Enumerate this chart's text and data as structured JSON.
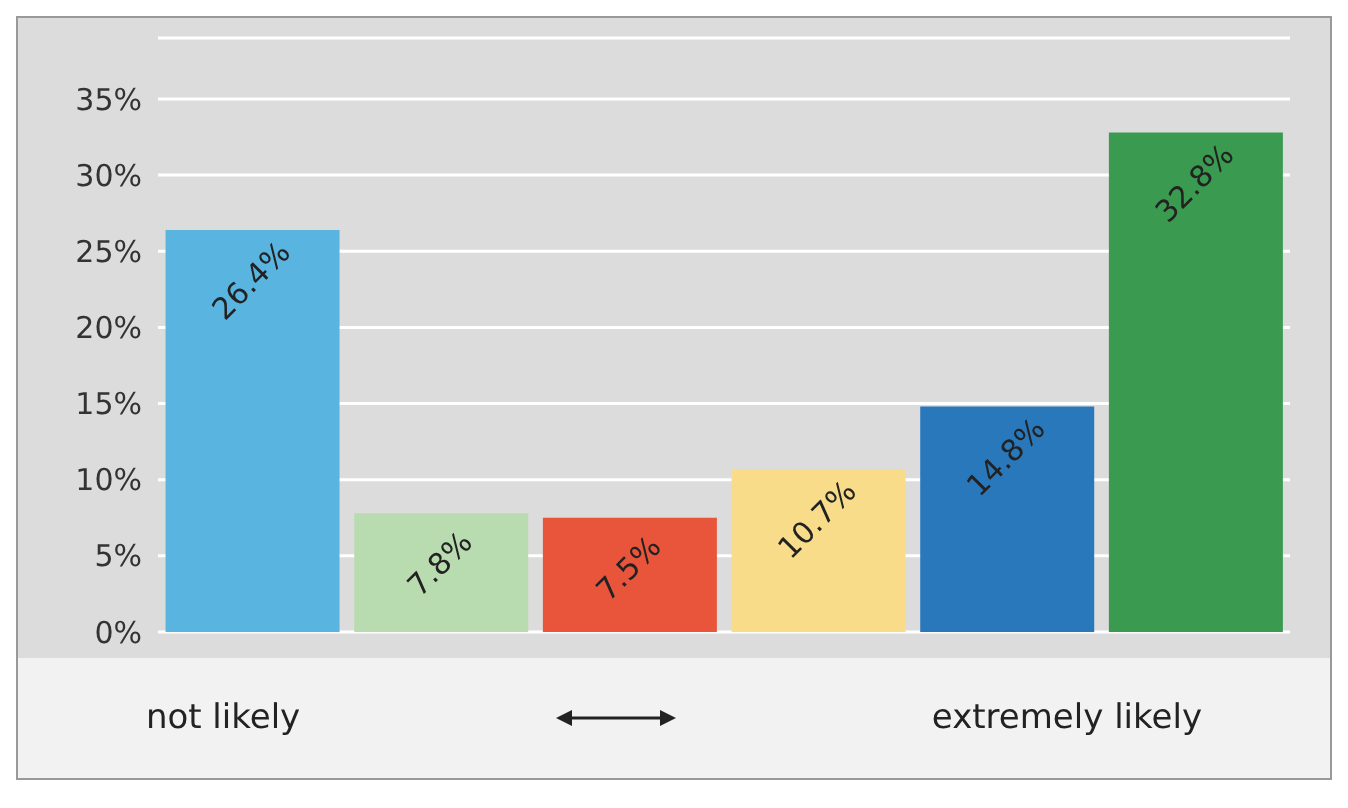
{
  "chart_data": {
    "type": "bar",
    "categories": [
      null,
      null,
      null,
      null,
      null,
      null
    ],
    "values": [
      26.4,
      7.8,
      7.5,
      10.7,
      14.8,
      32.8
    ],
    "colors": [
      "#5ab4e0",
      "#b8dcb0",
      "#e8553a",
      "#f8dc8a",
      "#2a78bc",
      "#3a9a50"
    ],
    "value_labels": [
      "26.4%",
      "7.8%",
      "7.5%",
      "10.7%",
      "14.8%",
      "32.8%"
    ],
    "ylim": [
      0,
      39
    ],
    "yticks": [
      {
        "value": 0,
        "label": "0%"
      },
      {
        "value": 5,
        "label": "5%"
      },
      {
        "value": 10,
        "label": "10%"
      },
      {
        "value": 15,
        "label": "15%"
      },
      {
        "value": 20,
        "label": "20%"
      },
      {
        "value": 25,
        "label": "25%"
      },
      {
        "value": 30,
        "label": "30%"
      },
      {
        "value": 35,
        "label": "35%"
      }
    ],
    "grid": "y",
    "annotations": [
      "not likely",
      "extremely likely"
    ]
  }
}
